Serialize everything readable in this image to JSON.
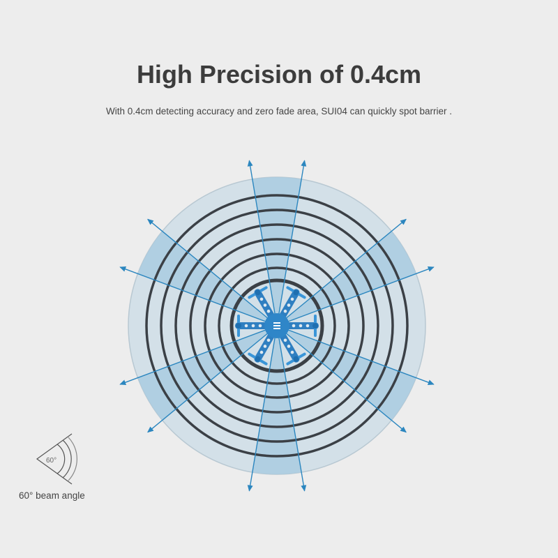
{
  "header": {
    "title": "High Precision of 0.4cm",
    "subtitle": "With 0.4cm detecting accuracy and zero fade area, SUI04 can quickly spot barrier ."
  },
  "beam_icon": {
    "angle_text": "60°",
    "label": "60° beam angle"
  },
  "diagram": {
    "beam_count": 6,
    "beam_angle_deg": 60,
    "colors": {
      "background": "#ededed",
      "disc": "#d3e0e8",
      "wedge": "#a9cbe0",
      "rings": "#3b4046",
      "rays": "#2b86bf",
      "drone": "#2f7fc1"
    }
  }
}
